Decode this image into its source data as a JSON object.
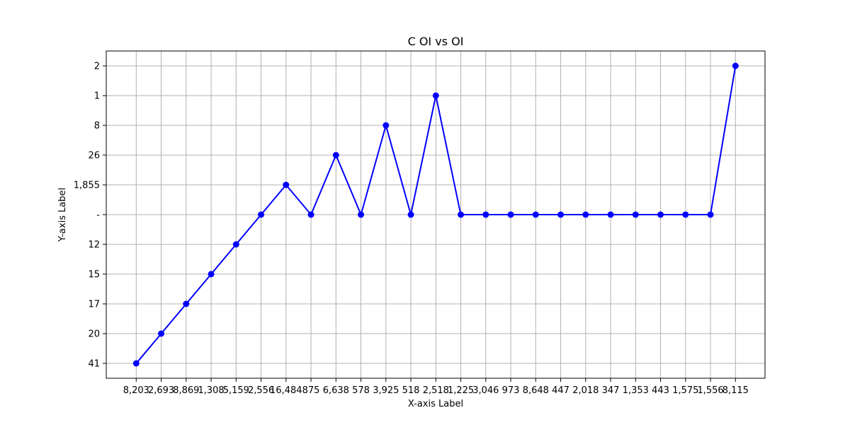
{
  "chart_data": {
    "type": "line",
    "title": "C OI vs OI",
    "xlabel": "X-axis Label",
    "ylabel": "Y-axis Label",
    "grid": true,
    "x": [
      "8,203",
      "2,693",
      "8,869",
      "1,308",
      "5,159",
      "2,556",
      "16,484",
      "875",
      "6,638",
      "578",
      "3,925",
      "518",
      "2,518",
      "1,225",
      "3,046",
      "973",
      "8,648",
      "447",
      "2,018",
      "347",
      "1,353",
      "443",
      "1,575",
      "1,556",
      "8,115"
    ],
    "y_categories": [
      "41",
      "20",
      "17",
      "15",
      "12",
      "-",
      "1,855",
      "26",
      "8",
      "1",
      "2"
    ],
    "series": [
      {
        "color": "#0000ff",
        "values": [
          "41",
          "20",
          "17",
          "15",
          "12",
          "-",
          "1,855",
          "-",
          "26",
          "-",
          "8",
          "-",
          "1",
          "-",
          "-",
          "-",
          "-",
          "-",
          "-",
          "-",
          "-",
          "-",
          "-",
          "-",
          "2"
        ]
      }
    ]
  }
}
